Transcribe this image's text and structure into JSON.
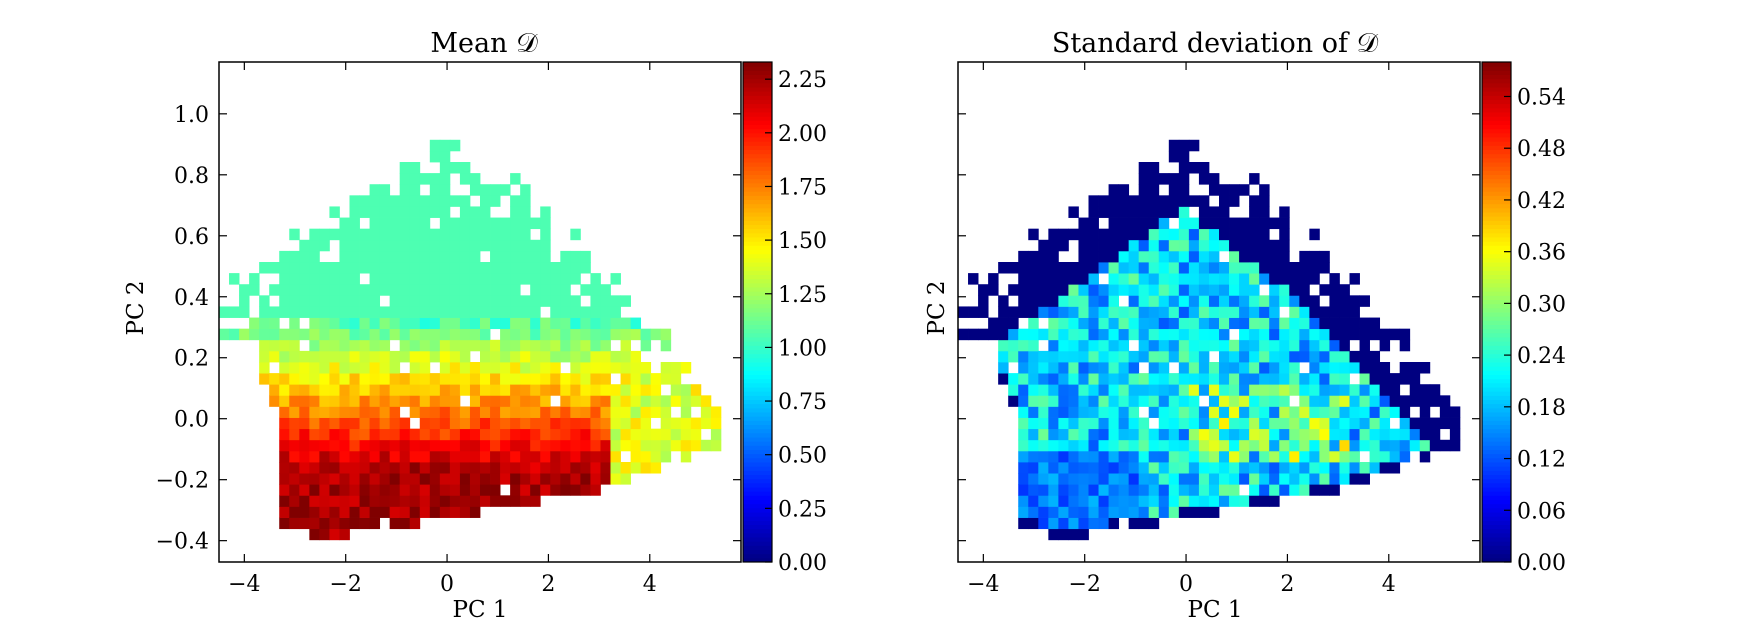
{
  "chart_data": [
    {
      "type": "heatmap",
      "title": "Mean 𝒟",
      "xlabel": "PC 1",
      "ylabel": "PC 2",
      "xlim": [
        -4.5,
        5.8
      ],
      "ylim": [
        -0.47,
        1.17
      ],
      "x_ticks": [
        -4,
        -2,
        0,
        2,
        4
      ],
      "x_tick_labels": [
        "−4",
        "−2",
        "0",
        "2",
        "4"
      ],
      "y_ticks": [
        -0.4,
        -0.2,
        0.0,
        0.2,
        0.4,
        0.6,
        0.8,
        1.0
      ],
      "y_tick_labels": [
        "−0.4",
        "−0.2",
        "0.0",
        "0.2",
        "0.4",
        "0.6",
        "0.8",
        "1.0"
      ],
      "colormap": "jet",
      "colorbar": {
        "vmin": 0.0,
        "vmax": 2.33,
        "ticks": [
          0.0,
          0.25,
          0.5,
          0.75,
          1.0,
          1.25,
          1.5,
          1.75,
          2.0,
          2.25
        ],
        "tick_labels": [
          "0.00",
          "0.25",
          "0.50",
          "0.75",
          "1.00",
          "1.25",
          "1.50",
          "1.75",
          "2.00",
          "2.25"
        ]
      },
      "grid": false,
      "statistic": "mean"
    },
    {
      "type": "heatmap",
      "title": "Standard deviation of 𝒟",
      "xlabel": "PC 1",
      "ylabel": "PC 2",
      "xlim": [
        -4.5,
        5.8
      ],
      "ylim": [
        -0.47,
        1.17
      ],
      "x_ticks": [
        -4,
        -2,
        0,
        2,
        4
      ],
      "x_tick_labels": [
        "−4",
        "−2",
        "0",
        "2",
        "4"
      ],
      "y_ticks": [
        -0.4,
        -0.2,
        0.0,
        0.2,
        0.4,
        0.6,
        0.8,
        1.0
      ],
      "y_tick_labels": [],
      "colormap": "jet",
      "colorbar": {
        "vmin": 0.0,
        "vmax": 0.58,
        "ticks": [
          0.0,
          0.06,
          0.12,
          0.18,
          0.24,
          0.3,
          0.36,
          0.42,
          0.48,
          0.54
        ],
        "tick_labels": [
          "0.00",
          "0.06",
          "0.12",
          "0.18",
          "0.24",
          "0.30",
          "0.36",
          "0.42",
          "0.48",
          "0.54"
        ]
      },
      "grid": false,
      "statistic": "std"
    }
  ]
}
